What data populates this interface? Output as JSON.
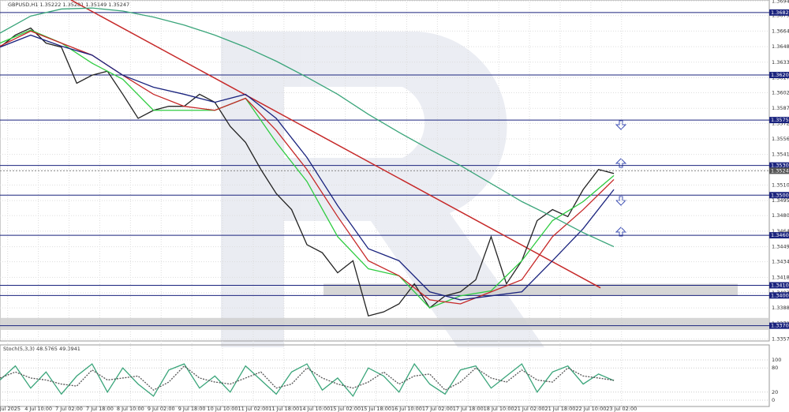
{
  "chart_data": [
    {
      "type": "line",
      "title": "GBPUSD,H1  1.35222 1.35281 1.35149 1.35247",
      "grid": true,
      "xlim": [
        0,
        401
      ],
      "ylim": [
        1.3355,
        1.3695
      ],
      "xticks": [
        {
          "value": 4,
          "label": "3 Jul 2025"
        },
        {
          "value": 20,
          "label": "4 Jul 10:00"
        },
        {
          "value": 36,
          "label": "7 Jul 02:00"
        },
        {
          "value": 52,
          "label": "7 Jul 18:00"
        },
        {
          "value": 68,
          "label": "8 Jul 10:00"
        },
        {
          "value": 84,
          "label": "9 Jul 02:00"
        },
        {
          "value": 100,
          "label": "9 Jul 18:00"
        },
        {
          "value": 116,
          "label": "10 Jul 10:00"
        },
        {
          "value": 132,
          "label": "11 Jul 02:00"
        },
        {
          "value": 148,
          "label": "11 Jul 18:00"
        },
        {
          "value": 164,
          "label": "14 Jul 10:00"
        },
        {
          "value": 180,
          "label": "15 Jul 02:00"
        },
        {
          "value": 196,
          "label": "15 Jul 18:00"
        },
        {
          "value": 212,
          "label": "16 Jul 10:00"
        },
        {
          "value": 228,
          "label": "17 Jul 02:00"
        },
        {
          "value": 244,
          "label": "17 Jul 18:00"
        },
        {
          "value": 260,
          "label": "18 Jul 10:00"
        },
        {
          "value": 276,
          "label": "21 Jul 02:00"
        },
        {
          "value": 292,
          "label": "21 Jul 18:00"
        },
        {
          "value": 308,
          "label": "22 Jul 10:00"
        },
        {
          "value": 324,
          "label": "23 Jul 02:00"
        }
      ],
      "yticks": [
        {
          "value": 1.3694,
          "label": "1.36940"
        },
        {
          "value": 1.36795,
          "label": "1.36795"
        },
        {
          "value": 1.3664,
          "label": "1.36640"
        },
        {
          "value": 1.36485,
          "label": "1.36485"
        },
        {
          "value": 1.3633,
          "label": "1.36330"
        },
        {
          "value": 1.36175,
          "label": "1.36175"
        },
        {
          "value": 1.36025,
          "label": "1.36025"
        },
        {
          "value": 1.3587,
          "label": "1.35870"
        },
        {
          "value": 1.3572,
          "label": "1.35720"
        },
        {
          "value": 1.35565,
          "label": "1.35565"
        },
        {
          "value": 1.3541,
          "label": "1.35410"
        },
        {
          "value": 1.3526,
          "label": "1.35260"
        },
        {
          "value": 1.35105,
          "label": "1.35105"
        },
        {
          "value": 1.3495,
          "label": "1.34950"
        },
        {
          "value": 1.348,
          "label": "1.34800"
        },
        {
          "value": 1.34645,
          "label": "1.34645"
        },
        {
          "value": 1.3449,
          "label": "1.34490"
        },
        {
          "value": 1.3434,
          "label": "1.34340"
        },
        {
          "value": 1.34185,
          "label": "1.34185"
        },
        {
          "value": 1.3403,
          "label": "1.34030"
        },
        {
          "value": 1.3388,
          "label": "1.33880"
        },
        {
          "value": 1.33725,
          "label": "1.33725"
        },
        {
          "value": 1.3357,
          "label": "1.33570"
        }
      ],
      "levels": [
        {
          "value": 1.36825,
          "label": "1.36825"
        },
        {
          "value": 1.36202,
          "label": "1.36202"
        },
        {
          "value": 1.35753,
          "label": "1.35753"
        },
        {
          "value": 1.353,
          "label": "1.35300"
        },
        {
          "value": 1.35004,
          "label": "1.35004"
        },
        {
          "value": 1.34604,
          "label": "1.34604"
        },
        {
          "value": 1.34105,
          "label": "1.34105"
        },
        {
          "value": 1.34004,
          "label": "1.34004"
        },
        {
          "value": 1.33702,
          "label": "1.33702"
        }
      ],
      "current": {
        "value": 1.35247,
        "label": "1.35247"
      },
      "zones": [
        [
          1.34,
          1.3412
        ],
        [
          1.3366,
          1.3378
        ]
      ],
      "trendline": {
        "color": "#c62828",
        "x": [
          37,
          313
        ],
        "y": [
          1.3695,
          1.3408
        ]
      },
      "series": [
        {
          "color": "#222222",
          "x": [
            0,
            8,
            16,
            24,
            32,
            40,
            48,
            56,
            64,
            72,
            80,
            88,
            96,
            104,
            112,
            120,
            128,
            136,
            144,
            152,
            160,
            168,
            176,
            184,
            192,
            200,
            208,
            216,
            224,
            232,
            240,
            248,
            256,
            264,
            272,
            280,
            288,
            296,
            304,
            312,
            320
          ],
          "values": [
            1.3648,
            1.366,
            1.3667,
            1.3652,
            1.3648,
            1.3612,
            1.362,
            1.3624,
            1.3601,
            1.3577,
            1.3585,
            1.3589,
            1.3589,
            1.3601,
            1.3593,
            1.3569,
            1.3553,
            1.3526,
            1.3502,
            1.3486,
            1.3451,
            1.3443,
            1.3423,
            1.3435,
            1.338,
            1.3384,
            1.3392,
            1.3412,
            1.3388,
            1.34,
            1.3404,
            1.3416,
            1.3459,
            1.3412,
            1.3435,
            1.3475,
            1.3486,
            1.3479,
            1.3506,
            1.3526,
            1.3522
          ]
        },
        {
          "color": "#2ecc40",
          "x": [
            0,
            16,
            32,
            48,
            64,
            80,
            96,
            112,
            128,
            144,
            160,
            176,
            192,
            208,
            224,
            240,
            256,
            272,
            288,
            304,
            320
          ],
          "values": [
            1.3652,
            1.3665,
            1.3652,
            1.3632,
            1.3616,
            1.3585,
            1.3585,
            1.3585,
            1.3597,
            1.3553,
            1.3514,
            1.3459,
            1.3427,
            1.342,
            1.3388,
            1.34,
            1.3405,
            1.3435,
            1.3475,
            1.3494,
            1.352
          ]
        },
        {
          "color": "#c62828",
          "x": [
            0,
            16,
            32,
            48,
            64,
            80,
            96,
            112,
            128,
            144,
            160,
            176,
            192,
            208,
            224,
            240,
            256,
            272,
            288,
            304,
            320
          ],
          "values": [
            1.3649,
            1.3664,
            1.3652,
            1.364,
            1.362,
            1.3601,
            1.3589,
            1.3585,
            1.3597,
            1.3565,
            1.3526,
            1.3479,
            1.3435,
            1.342,
            1.3396,
            1.3392,
            1.3404,
            1.3416,
            1.3459,
            1.3486,
            1.3516
          ]
        },
        {
          "color": "#1a237e",
          "x": [
            0,
            16,
            32,
            48,
            64,
            80,
            96,
            112,
            128,
            144,
            160,
            176,
            192,
            208,
            224,
            240,
            256,
            272,
            288,
            304,
            320
          ],
          "values": [
            1.3648,
            1.366,
            1.3649,
            1.364,
            1.362,
            1.3608,
            1.3601,
            1.3593,
            1.3601,
            1.3577,
            1.3538,
            1.349,
            1.3447,
            1.3435,
            1.3404,
            1.3396,
            1.34,
            1.3404,
            1.3435,
            1.3467,
            1.3506
          ]
        },
        {
          "color": "#3aa57a",
          "x": [
            0,
            16,
            32,
            48,
            64,
            80,
            96,
            112,
            128,
            144,
            160,
            176,
            192,
            208,
            224,
            240,
            256,
            272,
            288,
            304,
            320
          ],
          "values": [
            1.3662,
            1.3679,
            1.3686,
            1.3687,
            1.3684,
            1.3678,
            1.367,
            1.366,
            1.3648,
            1.3634,
            1.3618,
            1.3601,
            1.3581,
            1.3563,
            1.3546,
            1.353,
            1.3512,
            1.3494,
            1.3479,
            1.3463,
            1.3449
          ]
        }
      ]
    },
    {
      "type": "line",
      "title": "Stoch(5,3,3) 48.5765 49.3941",
      "xlim": [
        0,
        401
      ],
      "ylim": [
        0,
        100
      ],
      "yticks": [
        100,
        80,
        20,
        0
      ],
      "x": [
        0,
        8,
        16,
        24,
        32,
        40,
        48,
        56,
        64,
        72,
        80,
        88,
        96,
        104,
        112,
        120,
        128,
        136,
        144,
        152,
        160,
        168,
        176,
        184,
        192,
        200,
        208,
        216,
        224,
        232,
        240,
        248,
        256,
        264,
        272,
        280,
        288,
        296,
        304,
        312,
        320
      ],
      "series": [
        {
          "color": "#3aa57a",
          "values": [
            50,
            85,
            30,
            70,
            15,
            60,
            90,
            20,
            80,
            40,
            10,
            75,
            90,
            30,
            60,
            20,
            85,
            50,
            15,
            70,
            90,
            25,
            55,
            10,
            80,
            60,
            20,
            90,
            40,
            15,
            75,
            85,
            30,
            60,
            90,
            20,
            70,
            85,
            40,
            65,
            48.5765
          ]
        },
        {
          "color": "#555555",
          "dashed": true,
          "values": [
            55,
            70,
            55,
            50,
            40,
            35,
            75,
            50,
            55,
            60,
            25,
            45,
            85,
            55,
            45,
            40,
            55,
            70,
            30,
            40,
            80,
            55,
            40,
            30,
            45,
            70,
            40,
            60,
            65,
            25,
            45,
            80,
            55,
            45,
            75,
            50,
            45,
            80,
            60,
            55,
            49.3941
          ]
        }
      ]
    }
  ]
}
